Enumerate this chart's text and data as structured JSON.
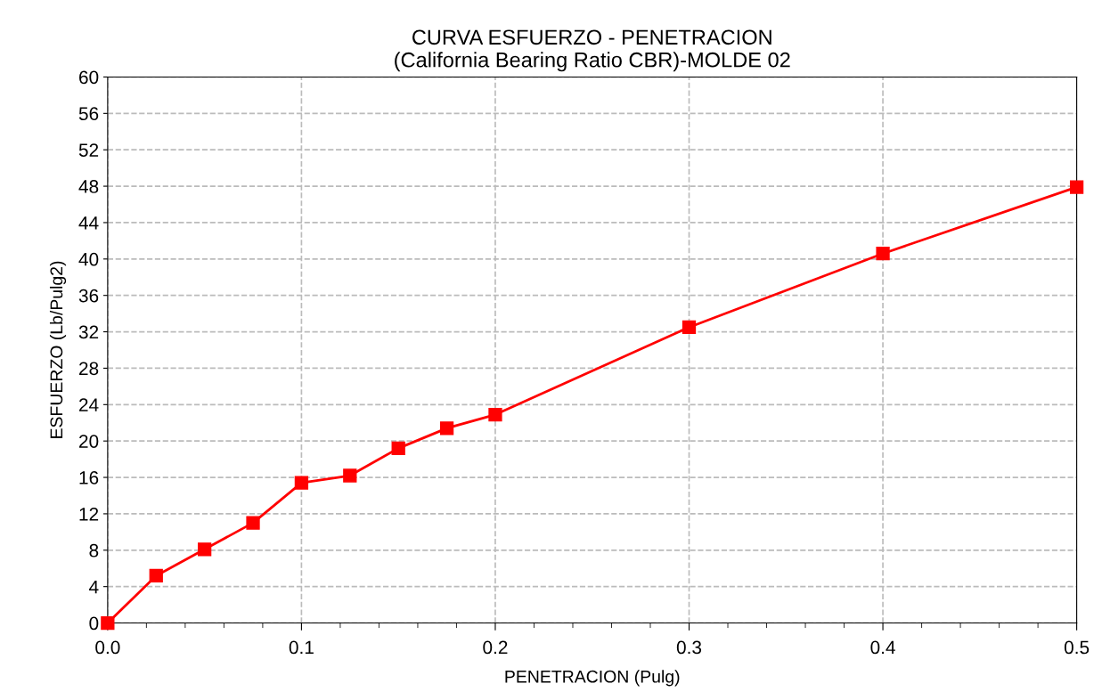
{
  "chart_data": {
    "type": "line",
    "title": "CURVA ESFUERZO - PENETRACION",
    "subtitle": "(California Bearing Ratio CBR)-MOLDE 02",
    "xlabel": "PENETRACION (Pulg)",
    "ylabel": "ESFUERZO (Lb/Pulg2)",
    "x": [
      0,
      0.025,
      0.05,
      0.075,
      0.1,
      0.125,
      0.15,
      0.175,
      0.2,
      0.3,
      0.4,
      0.5
    ],
    "series": [
      {
        "color": "#ff0000",
        "values": [
          0,
          5.2,
          8.1,
          11.0,
          15.4,
          16.2,
          19.2,
          21.4,
          22.9,
          32.5,
          40.6,
          47.9
        ]
      }
    ],
    "marker": "square",
    "line_style": "solid",
    "grid": true,
    "xlim": [
      0,
      0.5
    ],
    "ylim": [
      0,
      60
    ],
    "xticks": [
      {
        "value": 0,
        "label": "0.0"
      },
      {
        "value": 0.02,
        "label": null
      },
      {
        "value": 0.04,
        "label": null
      },
      {
        "value": 0.06,
        "label": null
      },
      {
        "value": 0.08,
        "label": null
      },
      {
        "value": 0.1,
        "label": "0.1"
      },
      {
        "value": 0.12,
        "label": null
      },
      {
        "value": 0.14,
        "label": null
      },
      {
        "value": 0.16,
        "label": null
      },
      {
        "value": 0.18,
        "label": null
      },
      {
        "value": 0.2,
        "label": "0.2"
      },
      {
        "value": 0.22,
        "label": null
      },
      {
        "value": 0.24,
        "label": null
      },
      {
        "value": 0.26,
        "label": null
      },
      {
        "value": 0.28,
        "label": null
      },
      {
        "value": 0.3,
        "label": "0.3"
      },
      {
        "value": 0.32,
        "label": null
      },
      {
        "value": 0.34,
        "label": null
      },
      {
        "value": 0.36,
        "label": null
      },
      {
        "value": 0.38,
        "label": null
      },
      {
        "value": 0.4,
        "label": "0.4"
      },
      {
        "value": 0.42,
        "label": null
      },
      {
        "value": 0.44,
        "label": null
      },
      {
        "value": 0.46,
        "label": null
      },
      {
        "value": 0.48,
        "label": null
      },
      {
        "value": 0.5,
        "label": "0.5"
      }
    ],
    "yticks": [
      0,
      4,
      8,
      12,
      16,
      20,
      24,
      28,
      32,
      36,
      40,
      44,
      48,
      52,
      56,
      60
    ]
  }
}
